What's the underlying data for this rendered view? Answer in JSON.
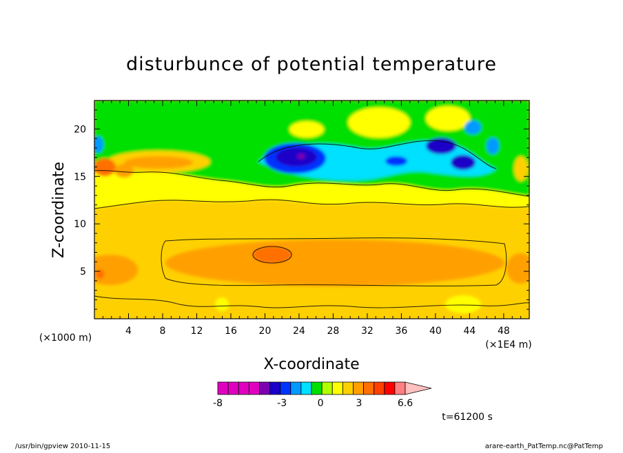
{
  "chart_data": {
    "type": "heatmap",
    "title": "disturbunce of potential temperature",
    "xlabel": "X-coordinate",
    "ylabel": "Z-coordinate",
    "x_unit_left": "(×1000 m)",
    "x_unit_right": "(×1E4 m)",
    "xlim": [
      0,
      51
    ],
    "ylim": [
      0,
      23
    ],
    "x_ticks": [
      "4",
      "8",
      "12",
      "16",
      "20",
      "24",
      "28",
      "32",
      "36",
      "40",
      "44",
      "48"
    ],
    "x_tick_values": [
      4,
      8,
      12,
      16,
      20,
      24,
      28,
      32,
      36,
      40,
      44,
      48
    ],
    "y_ticks": [
      "5",
      "10",
      "15",
      "20"
    ],
    "y_tick_values": [
      5,
      10,
      15,
      20
    ],
    "colorbar": {
      "labels": [
        "-8",
        "-3",
        "0",
        "3",
        "6.6"
      ],
      "label_values": [
        -8,
        -3,
        0,
        3,
        6.6
      ],
      "min": -8,
      "max": 6.6,
      "colors": [
        "#e000c0",
        "#e000c0",
        "#e000c0",
        "#e000c0",
        "#7a00b0",
        "#1a00c8",
        "#0033ff",
        "#0099ff",
        "#00e0ff",
        "#00e000",
        "#b0ff00",
        "#ffff00",
        "#ffd000",
        "#ffa000",
        "#ff7000",
        "#ff4000",
        "#ff0000",
        "#ff8080",
        "#ffc0c0"
      ]
    },
    "features": [
      {
        "desc": "near-surface band",
        "x": [
          0,
          51
        ],
        "z": [
          0,
          3.5
        ],
        "value": 0.5
      },
      {
        "desc": "lower warm layer",
        "x": [
          0,
          51
        ],
        "z": [
          3.5,
          11
        ],
        "value": 1.5
      },
      {
        "desc": "warm core",
        "x": [
          8,
          48
        ],
        "z": [
          3.5,
          8.5
        ],
        "value": 2.5
      },
      {
        "desc": "max warm spot",
        "x": [
          21,
          24
        ],
        "z": [
          6,
          7
        ],
        "value": 3.5
      },
      {
        "desc": "tropopause cold region",
        "x": [
          18,
          50
        ],
        "z": [
          14,
          20
        ],
        "value": -3
      }
    ]
  },
  "time_label": "t=61200 s",
  "footer_left": "/usr/bin/gpview   2010-11-15",
  "footer_right": "arare-earth_PatTemp.nc@PatTemp"
}
